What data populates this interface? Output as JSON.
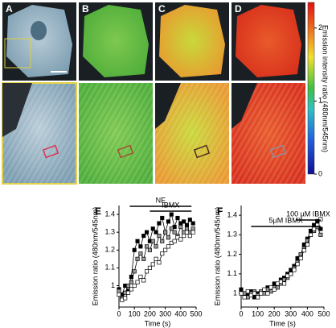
{
  "panels": {
    "labels": [
      "A",
      "B",
      "C",
      "D"
    ]
  },
  "colorbar": {
    "label": "Emission intensity ratio (480nm/545nm)",
    "lim": [
      0,
      2.35
    ],
    "ticks": [
      0,
      1,
      2
    ]
  },
  "chart_data": [
    {
      "type": "line",
      "panel": "E",
      "xlabel": "Time (s)",
      "ylabel": "Emission ratio (480nm/545nm)",
      "x": [
        0,
        20,
        40,
        60,
        80,
        100,
        120,
        140,
        160,
        180,
        200,
        220,
        240,
        260,
        280,
        300,
        320,
        340,
        360,
        380,
        400,
        420,
        440,
        460,
        480
      ],
      "xlim": [
        0,
        500
      ],
      "xticks": [
        0,
        100,
        200,
        300,
        400,
        500
      ],
      "ylim": [
        0.88,
        1.45
      ],
      "yticks": [
        1,
        1.1,
        1.2,
        1.3,
        1.4
      ],
      "series": [
        {
          "color": "#000",
          "marker_fill": "#000",
          "values": [
            0.98,
            0.95,
            1.0,
            0.97,
            1.05,
            1.2,
            1.25,
            1.22,
            1.28,
            1.3,
            1.25,
            1.32,
            1.3,
            1.35,
            1.38,
            1.3,
            1.36,
            1.4,
            1.33,
            1.38,
            1.35,
            1.36,
            1.34,
            1.37,
            1.35
          ]
        },
        {
          "color": "#000",
          "marker_fill": "#999",
          "values": [
            0.97,
            0.93,
            0.96,
            1.0,
            1.02,
            1.08,
            1.15,
            1.18,
            1.15,
            1.22,
            1.2,
            1.25,
            1.22,
            1.28,
            1.25,
            1.3,
            1.27,
            1.32,
            1.3,
            1.28,
            1.33,
            1.3,
            1.32,
            1.3,
            1.32
          ]
        },
        {
          "color": "#000",
          "marker_fill": "#fff",
          "values": [
            0.95,
            0.92,
            0.93,
            0.96,
            0.98,
            1.0,
            1.02,
            1.05,
            1.03,
            1.08,
            1.1,
            1.12,
            1.15,
            1.13,
            1.18,
            1.2,
            1.22,
            1.24,
            1.25,
            1.27,
            1.26,
            1.28,
            1.3,
            1.28,
            1.3
          ]
        }
      ],
      "annotations": [
        {
          "text": "IBMX",
          "x": [
            200,
            470
          ]
        },
        {
          "text": "NE",
          "x": [
            70,
            470
          ]
        }
      ]
    },
    {
      "type": "line",
      "panel": "F",
      "xlabel": "Time (s)",
      "ylabel": "Emission ratio (480nm/545nm)",
      "x": [
        0,
        20,
        40,
        60,
        80,
        100,
        120,
        140,
        160,
        180,
        200,
        220,
        240,
        260,
        280,
        300,
        320,
        340,
        360,
        380,
        400,
        420,
        440,
        460,
        480
      ],
      "xlim": [
        0,
        500
      ],
      "xticks": [
        0,
        100,
        200,
        300,
        400,
        500
      ],
      "ylim": [
        0.93,
        1.45
      ],
      "yticks": [
        1,
        1.1,
        1.2,
        1.3,
        1.4
      ],
      "series": [
        {
          "color": "#000",
          "marker_fill": "#000",
          "values": [
            1.02,
            1.0,
            0.99,
            1.01,
            0.98,
            1.0,
            1.0,
            1.01,
            1.03,
            1.02,
            1.05,
            1.04,
            1.07,
            1.08,
            1.1,
            1.12,
            1.14,
            1.18,
            1.2,
            1.25,
            1.28,
            1.32,
            1.35,
            1.37,
            1.33
          ]
        },
        {
          "color": "#000",
          "marker_fill": "#999",
          "values": [
            1.0,
            1.0,
            0.98,
            1.0,
            1.01,
            0.99,
            1.01,
            1.0,
            1.02,
            1.01,
            1.03,
            1.03,
            1.05,
            1.07,
            1.08,
            1.1,
            1.13,
            1.16,
            1.2,
            1.23,
            1.27,
            1.3,
            1.32,
            1.34,
            1.3
          ]
        },
        {
          "color": "#000",
          "marker_fill": "#fff",
          "values": [
            1.0,
            0.98,
            1.01,
            0.99,
            1.0,
            0.98,
            1.0,
            1.02,
            1.0,
            1.03,
            1.02,
            1.05,
            1.06,
            1.05,
            1.09,
            1.1,
            1.12,
            1.15,
            1.18,
            1.22,
            1.25,
            1.3,
            1.33,
            1.35,
            1.38
          ]
        }
      ],
      "annotations": [
        {
          "text": "100 µM IBMX",
          "x": [
            330,
            480
          ]
        },
        {
          "text": "5µM IBMX",
          "x": [
            60,
            480
          ]
        }
      ]
    }
  ]
}
